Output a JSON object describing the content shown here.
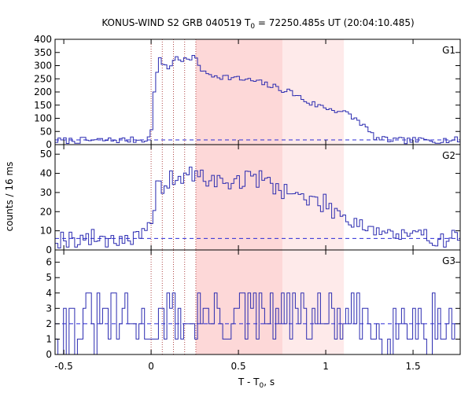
{
  "chart_data": {
    "type": "line",
    "title_main": "KONUS-WIND S2 GRB 040519 T",
    "title_sub": "0",
    "title_rest": " = 72250.485s UT (20:04:10.485)",
    "xlabel_main": "T - T",
    "xlabel_sub": "0",
    "xlabel_rest": ", s",
    "ylabel": "counts / 16 ms",
    "xlim": [
      -0.55,
      1.77
    ],
    "x_ticks": [
      -0.5,
      0,
      0.5,
      1,
      1.5
    ],
    "x_tick_labels": [
      "-0.5",
      "0",
      "0.5",
      "1",
      "1.5"
    ],
    "vertical_markers": [
      0.0,
      0.064,
      0.128,
      0.192,
      0.256
    ],
    "shaded_regions": [
      {
        "x0": 0.256,
        "x1": 0.752,
        "color": "#fdd8d8"
      },
      {
        "x0": 0.752,
        "x1": 1.104,
        "color": "#feeaea"
      }
    ],
    "bin_width": 0.016,
    "panels": [
      {
        "name": "G1",
        "ylim": [
          0,
          400
        ],
        "y_ticks": [
          0,
          50,
          100,
          150,
          200,
          250,
          300,
          350,
          400
        ],
        "y_tick_labels": [
          "0",
          "50",
          "100",
          "150",
          "200",
          "250",
          "300",
          "350",
          "400"
        ],
        "background": 18,
        "anchors": [
          [
            -0.55,
            15
          ],
          [
            -0.05,
            18
          ],
          [
            -0.02,
            25
          ],
          [
            0.0,
            30
          ],
          [
            0.02,
            230
          ],
          [
            0.05,
            320
          ],
          [
            0.1,
            290
          ],
          [
            0.14,
            330
          ],
          [
            0.2,
            320
          ],
          [
            0.26,
            330
          ],
          [
            0.3,
            270
          ],
          [
            0.4,
            260
          ],
          [
            0.5,
            250
          ],
          [
            0.6,
            240
          ],
          [
            0.7,
            220
          ],
          [
            0.8,
            200
          ],
          [
            0.9,
            160
          ],
          [
            1.0,
            140
          ],
          [
            1.1,
            125
          ],
          [
            1.2,
            85
          ],
          [
            1.26,
            40
          ],
          [
            1.3,
            20
          ],
          [
            1.45,
            15
          ],
          [
            1.77,
            18
          ]
        ],
        "noise": 12,
        "seed": 7
      },
      {
        "name": "G2",
        "ylim": [
          0,
          55
        ],
        "y_ticks": [
          0,
          10,
          20,
          30,
          40,
          50
        ],
        "y_tick_labels": [
          "0",
          "10",
          "20",
          "30",
          "40",
          "50"
        ],
        "background": 6,
        "anchors": [
          [
            -0.55,
            6
          ],
          [
            -0.05,
            6
          ],
          [
            0.0,
            12
          ],
          [
            0.03,
            32
          ],
          [
            0.1,
            36
          ],
          [
            0.2,
            39
          ],
          [
            0.3,
            38
          ],
          [
            0.4,
            35
          ],
          [
            0.5,
            36
          ],
          [
            0.6,
            38
          ],
          [
            0.7,
            34
          ],
          [
            0.8,
            30
          ],
          [
            0.9,
            26
          ],
          [
            1.0,
            24
          ],
          [
            1.1,
            18
          ],
          [
            1.2,
            14
          ],
          [
            1.3,
            10
          ],
          [
            1.45,
            7
          ],
          [
            1.77,
            6
          ]
        ],
        "noise": 5,
        "seed": 19
      },
      {
        "name": "G3",
        "ylim": [
          0,
          6.8
        ],
        "y_ticks": [
          0,
          1,
          2,
          3,
          4,
          5,
          6
        ],
        "y_tick_labels": [
          "0",
          "1",
          "2",
          "3",
          "4",
          "5",
          "6"
        ],
        "background": 2,
        "anchors": [
          [
            -0.55,
            2
          ],
          [
            0.0,
            2
          ],
          [
            0.3,
            2.5
          ],
          [
            0.9,
            2.4
          ],
          [
            1.2,
            2
          ],
          [
            1.77,
            2
          ]
        ],
        "noise": 1.9,
        "seed": 31
      }
    ],
    "line_color": "#2b2bb0",
    "background_line_color": "#2b2bd6",
    "marker_color": "#b04848"
  }
}
